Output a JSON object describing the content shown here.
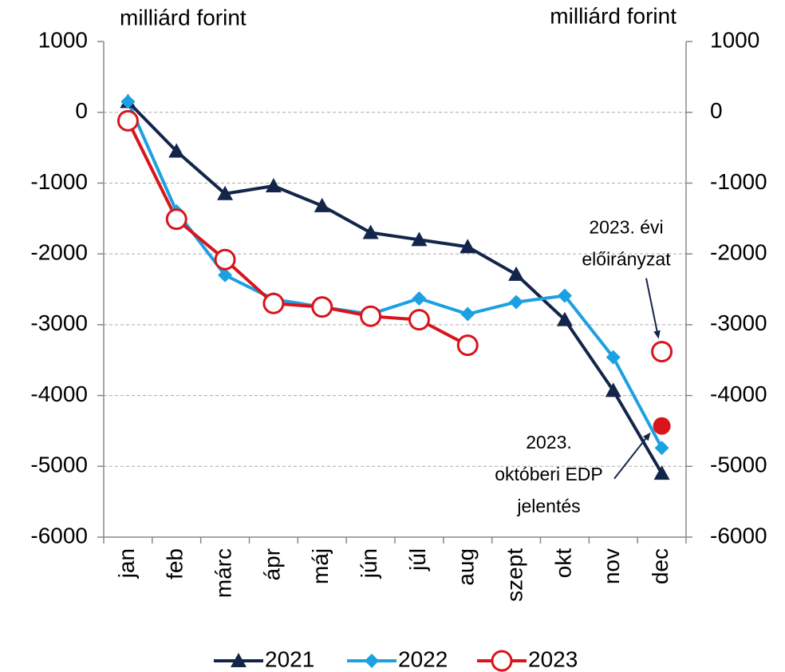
{
  "chart_data": {
    "type": "line",
    "ylabel": "milliárd forint",
    "y2label": "milliárd forint",
    "categories": [
      "jan",
      "feb",
      "márc",
      "ápr",
      "máj",
      "jún",
      "júl",
      "aug",
      "szept",
      "okt",
      "nov",
      "dec"
    ],
    "series": [
      {
        "name": "2021",
        "color": "#14254a",
        "marker": "triangle",
        "values": [
          150,
          -550,
          -1150,
          -1040,
          -1320,
          -1700,
          -1800,
          -1900,
          -2290,
          -2930,
          -3930,
          -5100
        ]
      },
      {
        "name": "2022",
        "color": "#1ba1e2",
        "marker": "diamond",
        "values": [
          150,
          -1400,
          -2300,
          -2640,
          -2750,
          -2850,
          -2630,
          -2850,
          -2680,
          -2590,
          -3460,
          -4740
        ]
      },
      {
        "name": "2023",
        "color": "#d9141b",
        "marker": "circle-open",
        "values": [
          -120,
          -1510,
          -2080,
          -2700,
          -2750,
          -2880,
          -2930,
          -3290,
          null,
          null,
          null,
          null
        ]
      }
    ],
    "annotations": [
      {
        "text": [
          "2023. évi",
          "előirányzat"
        ],
        "x": "dec",
        "value": -3380,
        "marker": "circle-open",
        "color": "#d9141b"
      },
      {
        "text": [
          "2023.",
          "októberi EDP",
          "jelentés"
        ],
        "x": "dec",
        "value": -4430,
        "marker": "circle-filled",
        "color": "#d9141b"
      }
    ],
    "ylim": [
      -6000,
      1000
    ],
    "yticks": [
      1000,
      0,
      -1000,
      -2000,
      -3000,
      -4000,
      -5000,
      -6000
    ],
    "y2lim": [
      -6000,
      1000
    ],
    "y2ticks": [
      1000,
      0,
      -1000,
      -2000,
      -3000,
      -4000,
      -5000,
      -6000
    ],
    "grid": true,
    "legend": "bottom"
  }
}
